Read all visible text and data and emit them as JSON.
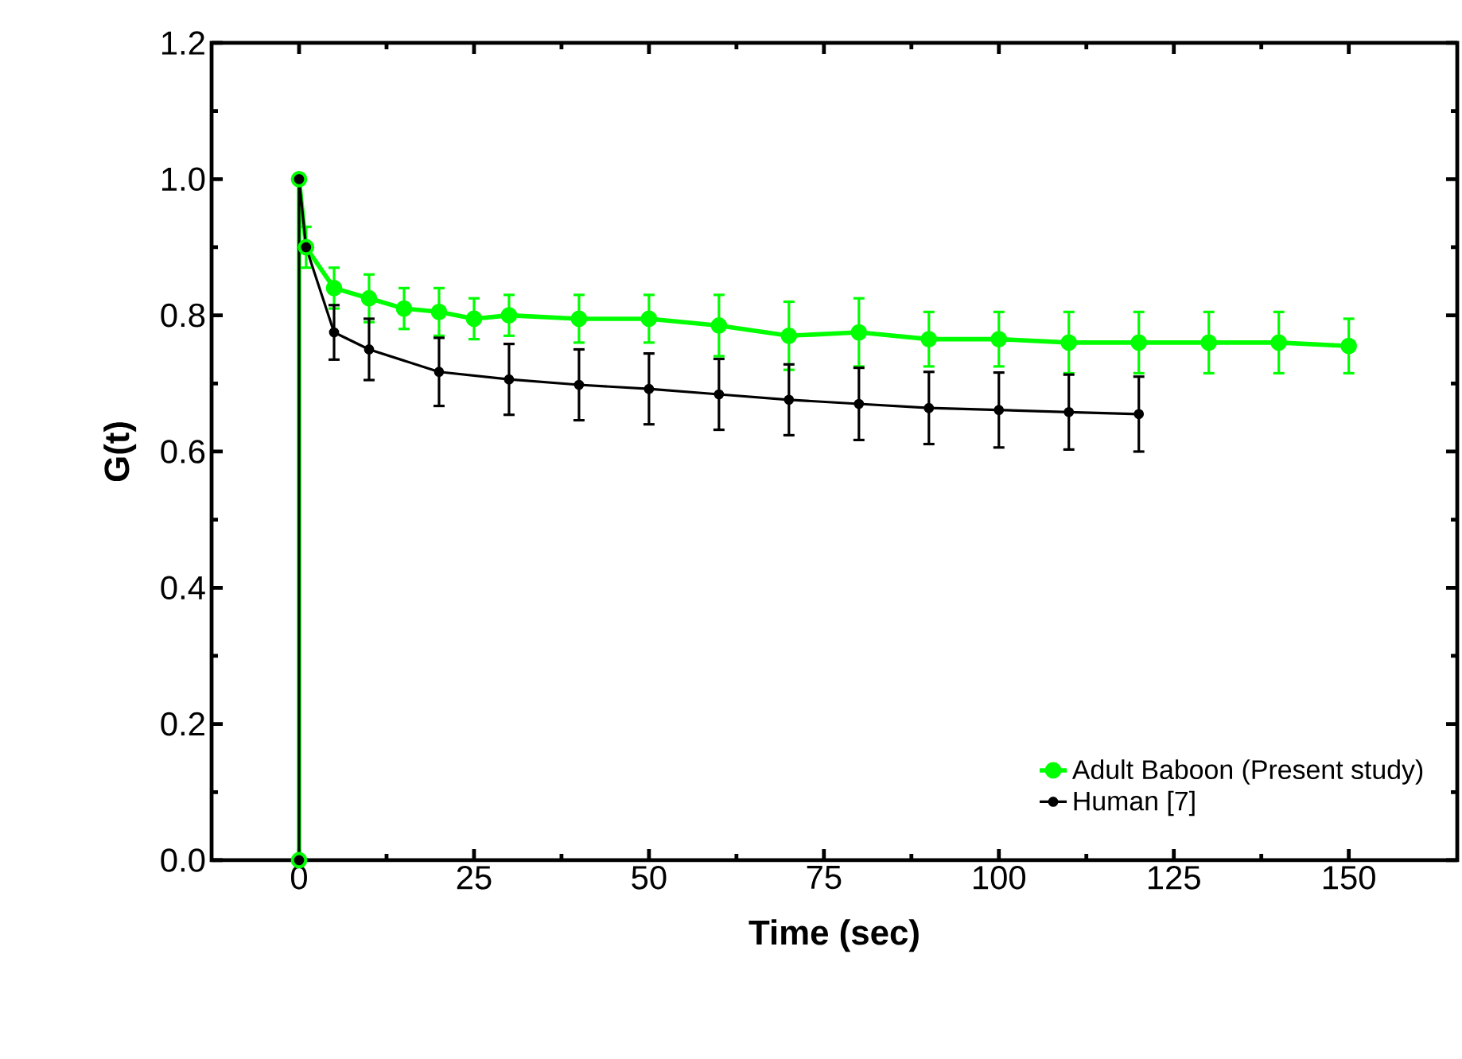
{
  "chart_data": {
    "type": "line",
    "xlabel": "Time (sec)",
    "ylabel": "G(t)",
    "xlim": [
      -12.5,
      165.5
    ],
    "ylim": [
      0,
      1.2
    ],
    "xticks": [
      0,
      25,
      50,
      75,
      100,
      125,
      150
    ],
    "yticks": [
      {
        "value": 0,
        "label": "0.0"
      },
      {
        "value": 0.2,
        "label": "0.2"
      },
      {
        "value": 0.4,
        "label": "0.4"
      },
      {
        "value": 0.6,
        "label": "0.6"
      },
      {
        "value": 0.8,
        "label": "0.8"
      },
      {
        "value": 1.0,
        "label": "1.0"
      },
      {
        "value": 1.2,
        "label": "1.2"
      }
    ],
    "grid": false,
    "legend": "bottom right",
    "marker": "circle",
    "line_style": "solid",
    "series": [
      {
        "name": "Adult Baboon (Present study)",
        "color": "#00ff00",
        "x": [
          0,
          0,
          1,
          5,
          10,
          15,
          20,
          25,
          30,
          40,
          50,
          60,
          70,
          80,
          90,
          100,
          110,
          120,
          130,
          140,
          150
        ],
        "values": [
          0,
          1.0,
          0.9,
          0.84,
          0.825,
          0.81,
          0.805,
          0.795,
          0.8,
          0.795,
          0.795,
          0.785,
          0.77,
          0.775,
          0.765,
          0.765,
          0.76,
          0.76,
          0.76,
          0.76,
          0.755
        ],
        "errors": [
          null,
          null,
          0.03,
          0.03,
          0.035,
          0.03,
          0.035,
          0.03,
          0.03,
          0.035,
          0.035,
          0.045,
          0.05,
          0.05,
          0.04,
          0.04,
          0.045,
          0.045,
          0.045,
          0.045,
          0.04
        ]
      },
      {
        "name": "Human [7]",
        "color": "#000000",
        "x": [
          0,
          0,
          1,
          5,
          10,
          20,
          30,
          40,
          50,
          60,
          70,
          80,
          90,
          100,
          110,
          120
        ],
        "values": [
          0,
          1.0,
          0.9,
          0.775,
          0.75,
          0.717,
          0.706,
          0.698,
          0.692,
          0.684,
          0.676,
          0.67,
          0.664,
          0.661,
          0.658,
          0.655
        ],
        "errors": [
          null,
          null,
          null,
          0.04,
          0.045,
          0.05,
          0.052,
          0.052,
          0.052,
          0.052,
          0.052,
          0.053,
          0.053,
          0.055,
          0.055,
          0.055
        ]
      }
    ]
  }
}
